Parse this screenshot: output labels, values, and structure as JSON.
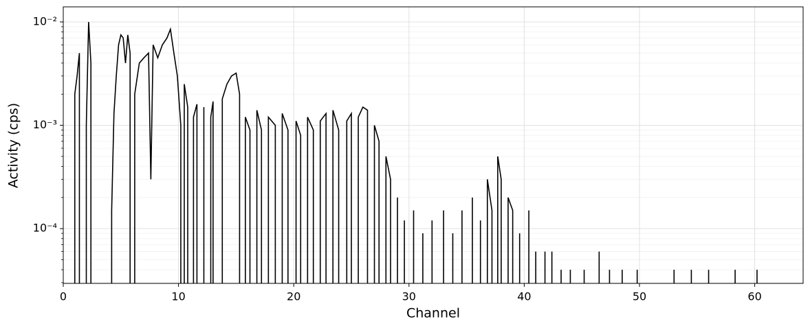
{
  "chart_data": {
    "type": "line",
    "xlabel": "Channel",
    "ylabel": "Activity (cps)",
    "log_y": true,
    "grid": true,
    "color": "#000000",
    "xlim": [
      0,
      64.2
    ],
    "xticks": [
      0,
      10,
      20,
      30,
      40,
      50,
      60
    ],
    "ylim": [
      2.95e-05,
      0.014
    ],
    "yticks": [
      {
        "value": 0.0001,
        "label": "10⁻⁴"
      },
      {
        "value": 0.001,
        "label": "10⁻³"
      },
      {
        "value": 0.01,
        "label": "10⁻²"
      }
    ],
    "yminorticks": [
      3e-05,
      4e-05,
      5e-05,
      6e-05,
      7e-05,
      8e-05,
      9e-05,
      0.0002,
      0.0003,
      0.0004,
      0.0005,
      0.0006,
      0.0007,
      0.0008,
      0.0009,
      0.002,
      0.003,
      0.004,
      0.005,
      0.006,
      0.007,
      0.008,
      0.009
    ],
    "x": [
      1.0,
      1.2,
      1.4,
      1.6,
      2.0,
      2.2,
      2.4,
      2.6,
      4.2,
      4.4,
      4.6,
      4.8,
      5.0,
      5.2,
      5.4,
      5.6,
      5.8,
      6.0,
      6.2,
      6.6,
      7.0,
      7.4,
      7.6,
      7.8,
      8.2,
      8.6,
      9.0,
      9.3,
      9.6,
      9.9,
      10.2,
      10.3,
      10.5,
      10.8,
      11.0,
      11.3,
      11.6,
      11.8,
      12.2,
      12.5,
      12.8,
      13.0,
      13.4,
      13.8,
      14.2,
      14.6,
      15.0,
      15.3,
      15.5,
      15.8,
      16.2,
      16.5,
      16.8,
      17.2,
      17.5,
      17.8,
      18.4,
      18.7,
      19.0,
      19.5,
      19.8,
      20.2,
      20.6,
      20.9,
      21.2,
      21.7,
      22.0,
      22.3,
      22.8,
      23.1,
      23.4,
      23.9,
      24.2,
      24.6,
      25.0,
      25.3,
      25.6,
      26.0,
      26.4,
      26.7,
      27.0,
      27.4,
      27.7,
      28.0,
      28.4,
      28.7,
      29.0,
      29.2,
      29.6,
      29.9,
      30.4,
      30.7,
      31.2,
      31.5,
      32.0,
      32.4,
      33.0,
      33.3,
      33.8,
      34.1,
      34.6,
      35.0,
      35.5,
      35.8,
      36.2,
      36.5,
      36.8,
      37.2,
      37.5,
      37.7,
      38.0,
      38.3,
      38.6,
      39.0,
      39.3,
      39.6,
      40.0,
      40.4,
      40.7,
      41.0,
      41.3,
      41.8,
      42.1,
      42.4,
      42.8,
      43.2,
      43.5,
      44.0,
      44.5,
      45.2,
      45.6,
      46.5,
      46.8,
      47.4,
      47.8,
      48.5,
      49.0,
      49.8,
      50.1,
      53.0,
      53.4,
      54.5,
      54.8,
      56.0,
      56.4,
      58.3,
      58.6,
      60.2,
      60.5
    ],
    "values": [
      0.002,
      0.003,
      0.005,
      null,
      0.001,
      0.01,
      0.004,
      null,
      0.00015,
      0.0013,
      0.003,
      0.006,
      0.0075,
      0.007,
      0.004,
      0.0075,
      0.005,
      null,
      0.002,
      0.004,
      0.0045,
      0.005,
      0.0003,
      0.006,
      0.0045,
      0.006,
      0.007,
      0.0085,
      0.005,
      0.003,
      0.001,
      null,
      0.0025,
      0.0015,
      null,
      0.0012,
      0.0016,
      null,
      0.0015,
      null,
      0.0012,
      0.0017,
      null,
      0.0018,
      0.0025,
      0.003,
      0.0032,
      0.002,
      null,
      0.0012,
      0.0009,
      null,
      0.0014,
      0.0009,
      null,
      0.0012,
      0.001,
      null,
      0.0013,
      0.0009,
      null,
      0.0011,
      0.0008,
      null,
      0.0012,
      0.0009,
      null,
      0.0011,
      0.0013,
      null,
      0.0014,
      0.0009,
      null,
      0.0011,
      0.0013,
      null,
      0.0012,
      0.0015,
      0.0014,
      null,
      0.001,
      0.0007,
      null,
      0.0005,
      0.0003,
      null,
      0.0002,
      null,
      0.00012,
      null,
      0.00015,
      null,
      9e-05,
      null,
      0.00012,
      null,
      0.00015,
      null,
      9e-05,
      null,
      0.00015,
      null,
      0.0002,
      null,
      0.00012,
      null,
      0.0003,
      0.00015,
      null,
      0.0005,
      0.0003,
      null,
      0.0002,
      0.00015,
      null,
      9e-05,
      null,
      0.00015,
      null,
      6e-05,
      null,
      6e-05,
      null,
      6e-05,
      null,
      4e-05,
      null,
      4e-05,
      null,
      4e-05,
      null,
      6e-05,
      null,
      4e-05,
      null,
      4e-05,
      null,
      4e-05,
      null,
      4e-05,
      null,
      4e-05,
      null,
      4e-05,
      null,
      4e-05,
      null,
      4e-05,
      null
    ]
  }
}
